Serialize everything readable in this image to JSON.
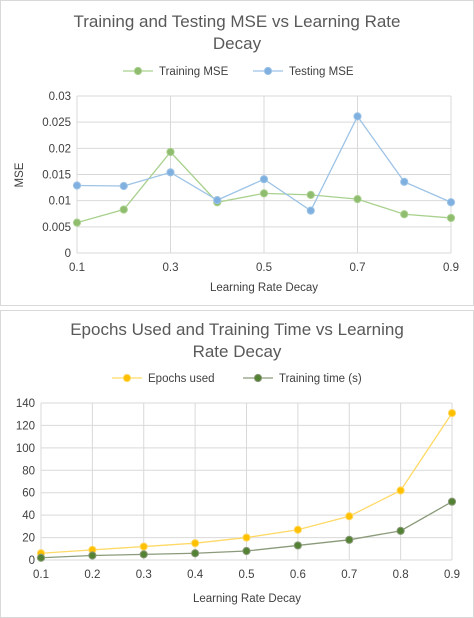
{
  "chart_data": [
    {
      "type": "line",
      "title_line1": "Training and Testing MSE vs Learning Rate",
      "title_line2": "Decay",
      "xlabel": "Learning Rate Decay",
      "ylabel": "MSE",
      "x": [
        0.1,
        0.2,
        0.3,
        0.4,
        0.5,
        0.6,
        0.7,
        0.8,
        0.9
      ],
      "x_ticks": [
        "0.1",
        "0.3",
        "0.5",
        "0.7",
        "0.9"
      ],
      "y_ticks": [
        "0",
        "0.005",
        "0.01",
        "0.015",
        "0.02",
        "0.025",
        "0.03"
      ],
      "xlim": [
        0.1,
        0.9
      ],
      "ylim": [
        0,
        0.03
      ],
      "grid": true,
      "legend_position": "top",
      "series": [
        {
          "name": "Training MSE",
          "color": "#a9d18e",
          "marker_color": "#8fbc6f",
          "values": [
            0.0058,
            0.0083,
            0.0193,
            0.0097,
            0.0114,
            0.0111,
            0.0103,
            0.0074,
            0.0067
          ]
        },
        {
          "name": "Testing MSE",
          "color": "#9dc3e6",
          "marker_color": "#7fb0df",
          "values": [
            0.0129,
            0.0128,
            0.0154,
            0.0101,
            0.0141,
            0.0081,
            0.0261,
            0.0136,
            0.0097
          ]
        }
      ]
    },
    {
      "type": "line",
      "title_line1": "Epochs Used and Training Time vs Learning",
      "title_line2": "Rate Decay",
      "xlabel": "Learning Rate Decay",
      "ylabel": "",
      "x": [
        0.1,
        0.2,
        0.3,
        0.4,
        0.5,
        0.6,
        0.7,
        0.8,
        0.9
      ],
      "x_ticks": [
        "0.1",
        "0.2",
        "0.3",
        "0.4",
        "0.5",
        "0.6",
        "0.7",
        "0.8",
        "0.9"
      ],
      "y_ticks": [
        "0",
        "20",
        "40",
        "60",
        "80",
        "100",
        "120",
        "140"
      ],
      "xlim": [
        0.1,
        0.9
      ],
      "ylim": [
        0,
        140
      ],
      "grid": true,
      "legend_position": "top",
      "series": [
        {
          "name": "Epochs used",
          "color": "#ffd966",
          "marker_color": "#ffc000",
          "values": [
            6,
            9,
            12,
            15,
            20,
            27,
            39,
            62,
            131
          ]
        },
        {
          "name": "Training time (s)",
          "color": "#8a9a7a",
          "marker_color": "#548235",
          "values": [
            2,
            4,
            5,
            6,
            8,
            13,
            18,
            26,
            52
          ]
        }
      ]
    }
  ]
}
